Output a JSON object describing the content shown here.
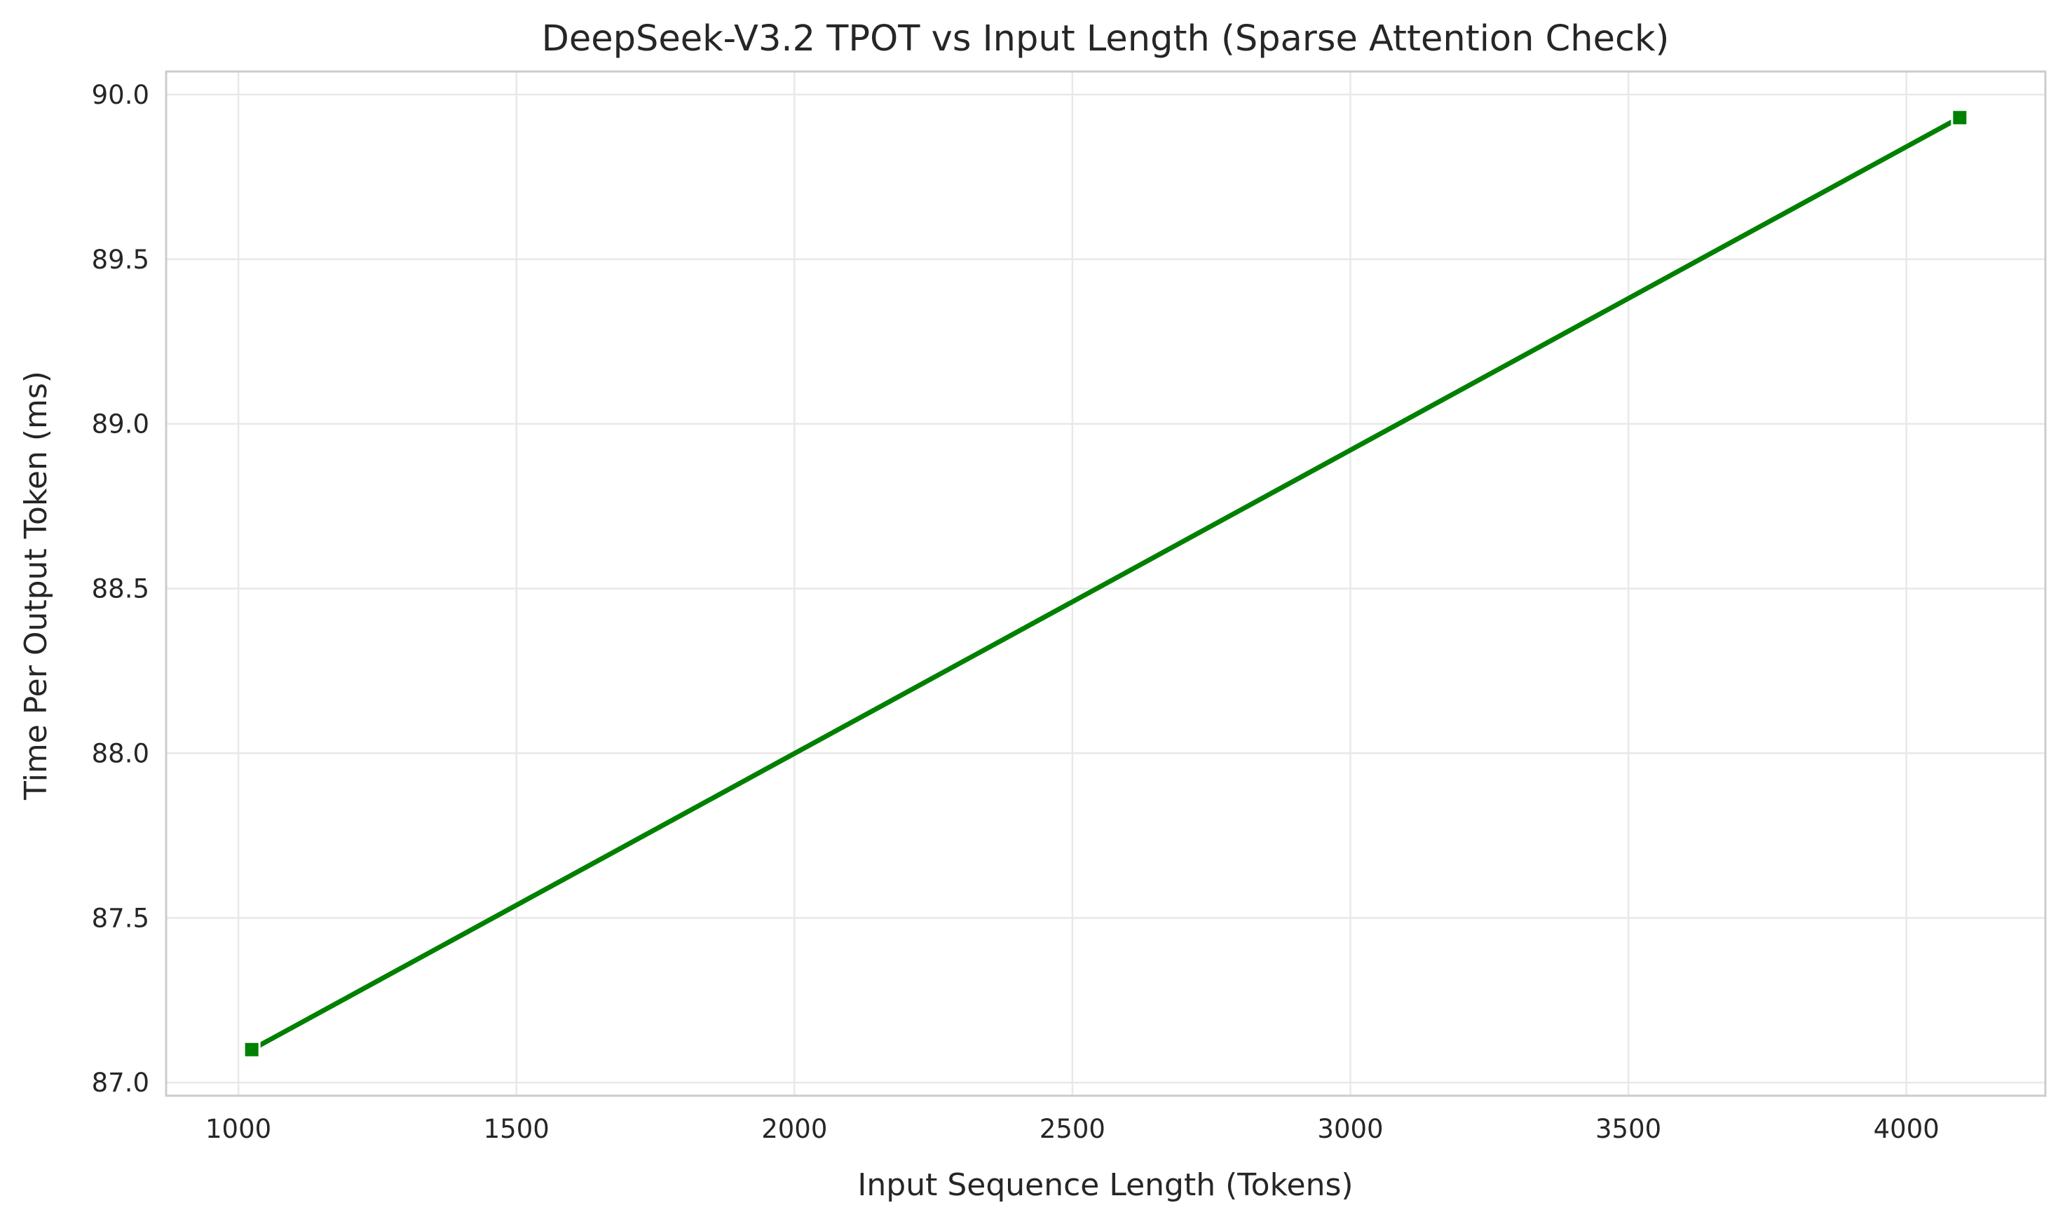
{
  "chart_data": {
    "type": "line",
    "title": "DeepSeek-V3.2 TPOT vs Input Length (Sparse Attention Check)",
    "xlabel": "Input Sequence Length (Tokens)",
    "ylabel": "Time Per Output Token (ms)",
    "xlim": [
      870,
      4250
    ],
    "ylim": [
      86.96,
      90.07
    ],
    "x_ticks": [
      1000,
      1500,
      2000,
      2500,
      3000,
      3500,
      4000
    ],
    "x_tick_labels": [
      "1000",
      "1500",
      "2000",
      "2500",
      "3000",
      "3500",
      "4000"
    ],
    "y_ticks": [
      87.0,
      87.5,
      88.0,
      88.5,
      89.0,
      89.5,
      90.0
    ],
    "y_tick_labels": [
      "87.0",
      "87.5",
      "88.0",
      "88.5",
      "89.0",
      "89.5",
      "90.0"
    ],
    "grid": true,
    "series": [
      {
        "color": "#008000",
        "marker": "square",
        "x": [
          1024,
          4096
        ],
        "y": [
          87.1,
          89.93
        ]
      }
    ]
  }
}
